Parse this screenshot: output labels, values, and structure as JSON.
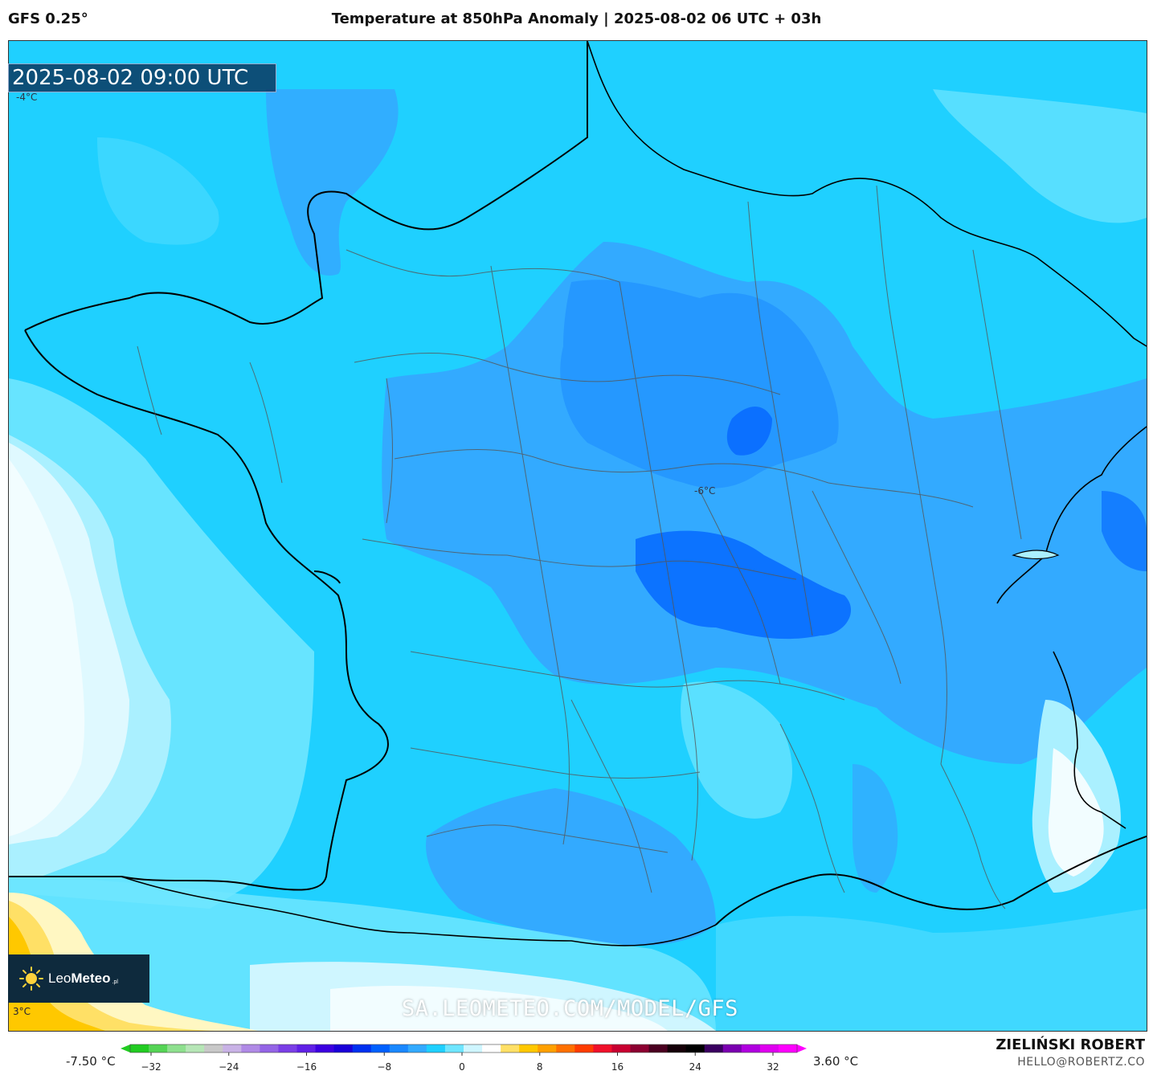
{
  "header": {
    "model": "GFS 0.25°",
    "title": "Temperature at 850hPa Anomaly | 2025-08-02 06 UTC + 03h"
  },
  "map": {
    "timestamp": "2025-08-02 09:00 UTC",
    "labels": {
      "nw": "-4°C",
      "center": "-6°C",
      "sw": "3°C"
    },
    "logo": {
      "brand_light": "Leo",
      "brand_bold": "Meteo",
      "suffix": ".pl",
      "icon": "sun-icon"
    },
    "watermark": "SA.LEOMETEO.COM/MODEL/GFS"
  },
  "colorbar": {
    "min_label": "-7.50 °C",
    "max_label": "3.60 °C",
    "ticks": [
      "-32",
      "-24",
      "-16",
      "-8",
      "0",
      "8",
      "16",
      "24",
      "32"
    ],
    "colors": [
      "#22cc22",
      "#55d455",
      "#8ee08e",
      "#b6e6b6",
      "#c8c8c8",
      "#c9b2e6",
      "#b08ae6",
      "#9464e6",
      "#7a3ee6",
      "#6020e6",
      "#3c00e0",
      "#1a00d8",
      "#0030f0",
      "#0060ff",
      "#1a88ff",
      "#33aaff",
      "#1fd0ff",
      "#6fe6ff",
      "#cff6ff",
      "#ffffff",
      "#ffe066",
      "#ffc800",
      "#ffa000",
      "#ff7000",
      "#ff3c00",
      "#f0102a",
      "#c80030",
      "#8c0030",
      "#4a0020",
      "#150008",
      "#000000",
      "#3a0060",
      "#7a00b0",
      "#b000e0",
      "#e000f0",
      "#ff00ff"
    ]
  },
  "credits": {
    "author": "ZIELIŃSKI ROBERT",
    "email": "HELLO@ROBERTZ.CO"
  }
}
